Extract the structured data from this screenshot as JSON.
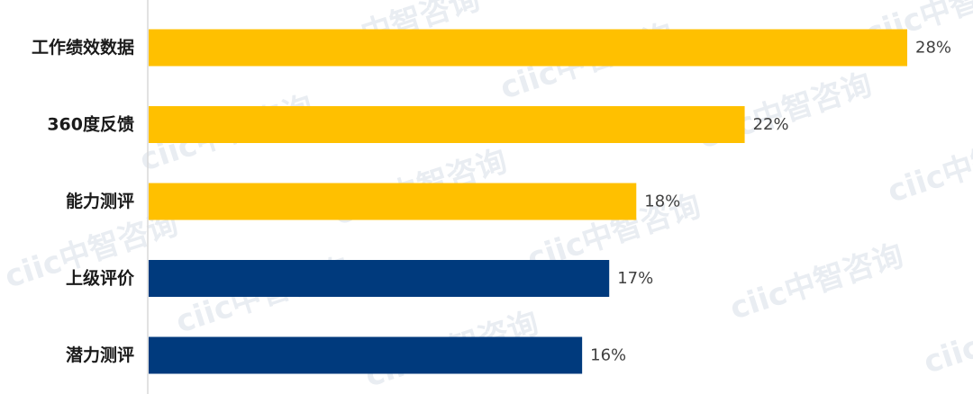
{
  "watermark": {
    "text": "ciic中智咨询"
  },
  "chart_data": {
    "type": "bar",
    "orientation": "horizontal",
    "categories": [
      "工作绩效数据",
      "360度反馈",
      "能力测评",
      "上级评价",
      "潜力测评"
    ],
    "values": [
      28,
      22,
      18,
      17,
      16
    ],
    "value_labels": [
      "28%",
      "22%",
      "18%",
      "17%",
      "16%"
    ],
    "unit": "%",
    "bar_colors": [
      "#FFC000",
      "#FFC000",
      "#FFC000",
      "#003A7D",
      "#003A7D"
    ],
    "xlim": [
      0,
      28
    ],
    "grid": false,
    "legend": "none",
    "title": "",
    "xlabel": "",
    "ylabel": ""
  }
}
